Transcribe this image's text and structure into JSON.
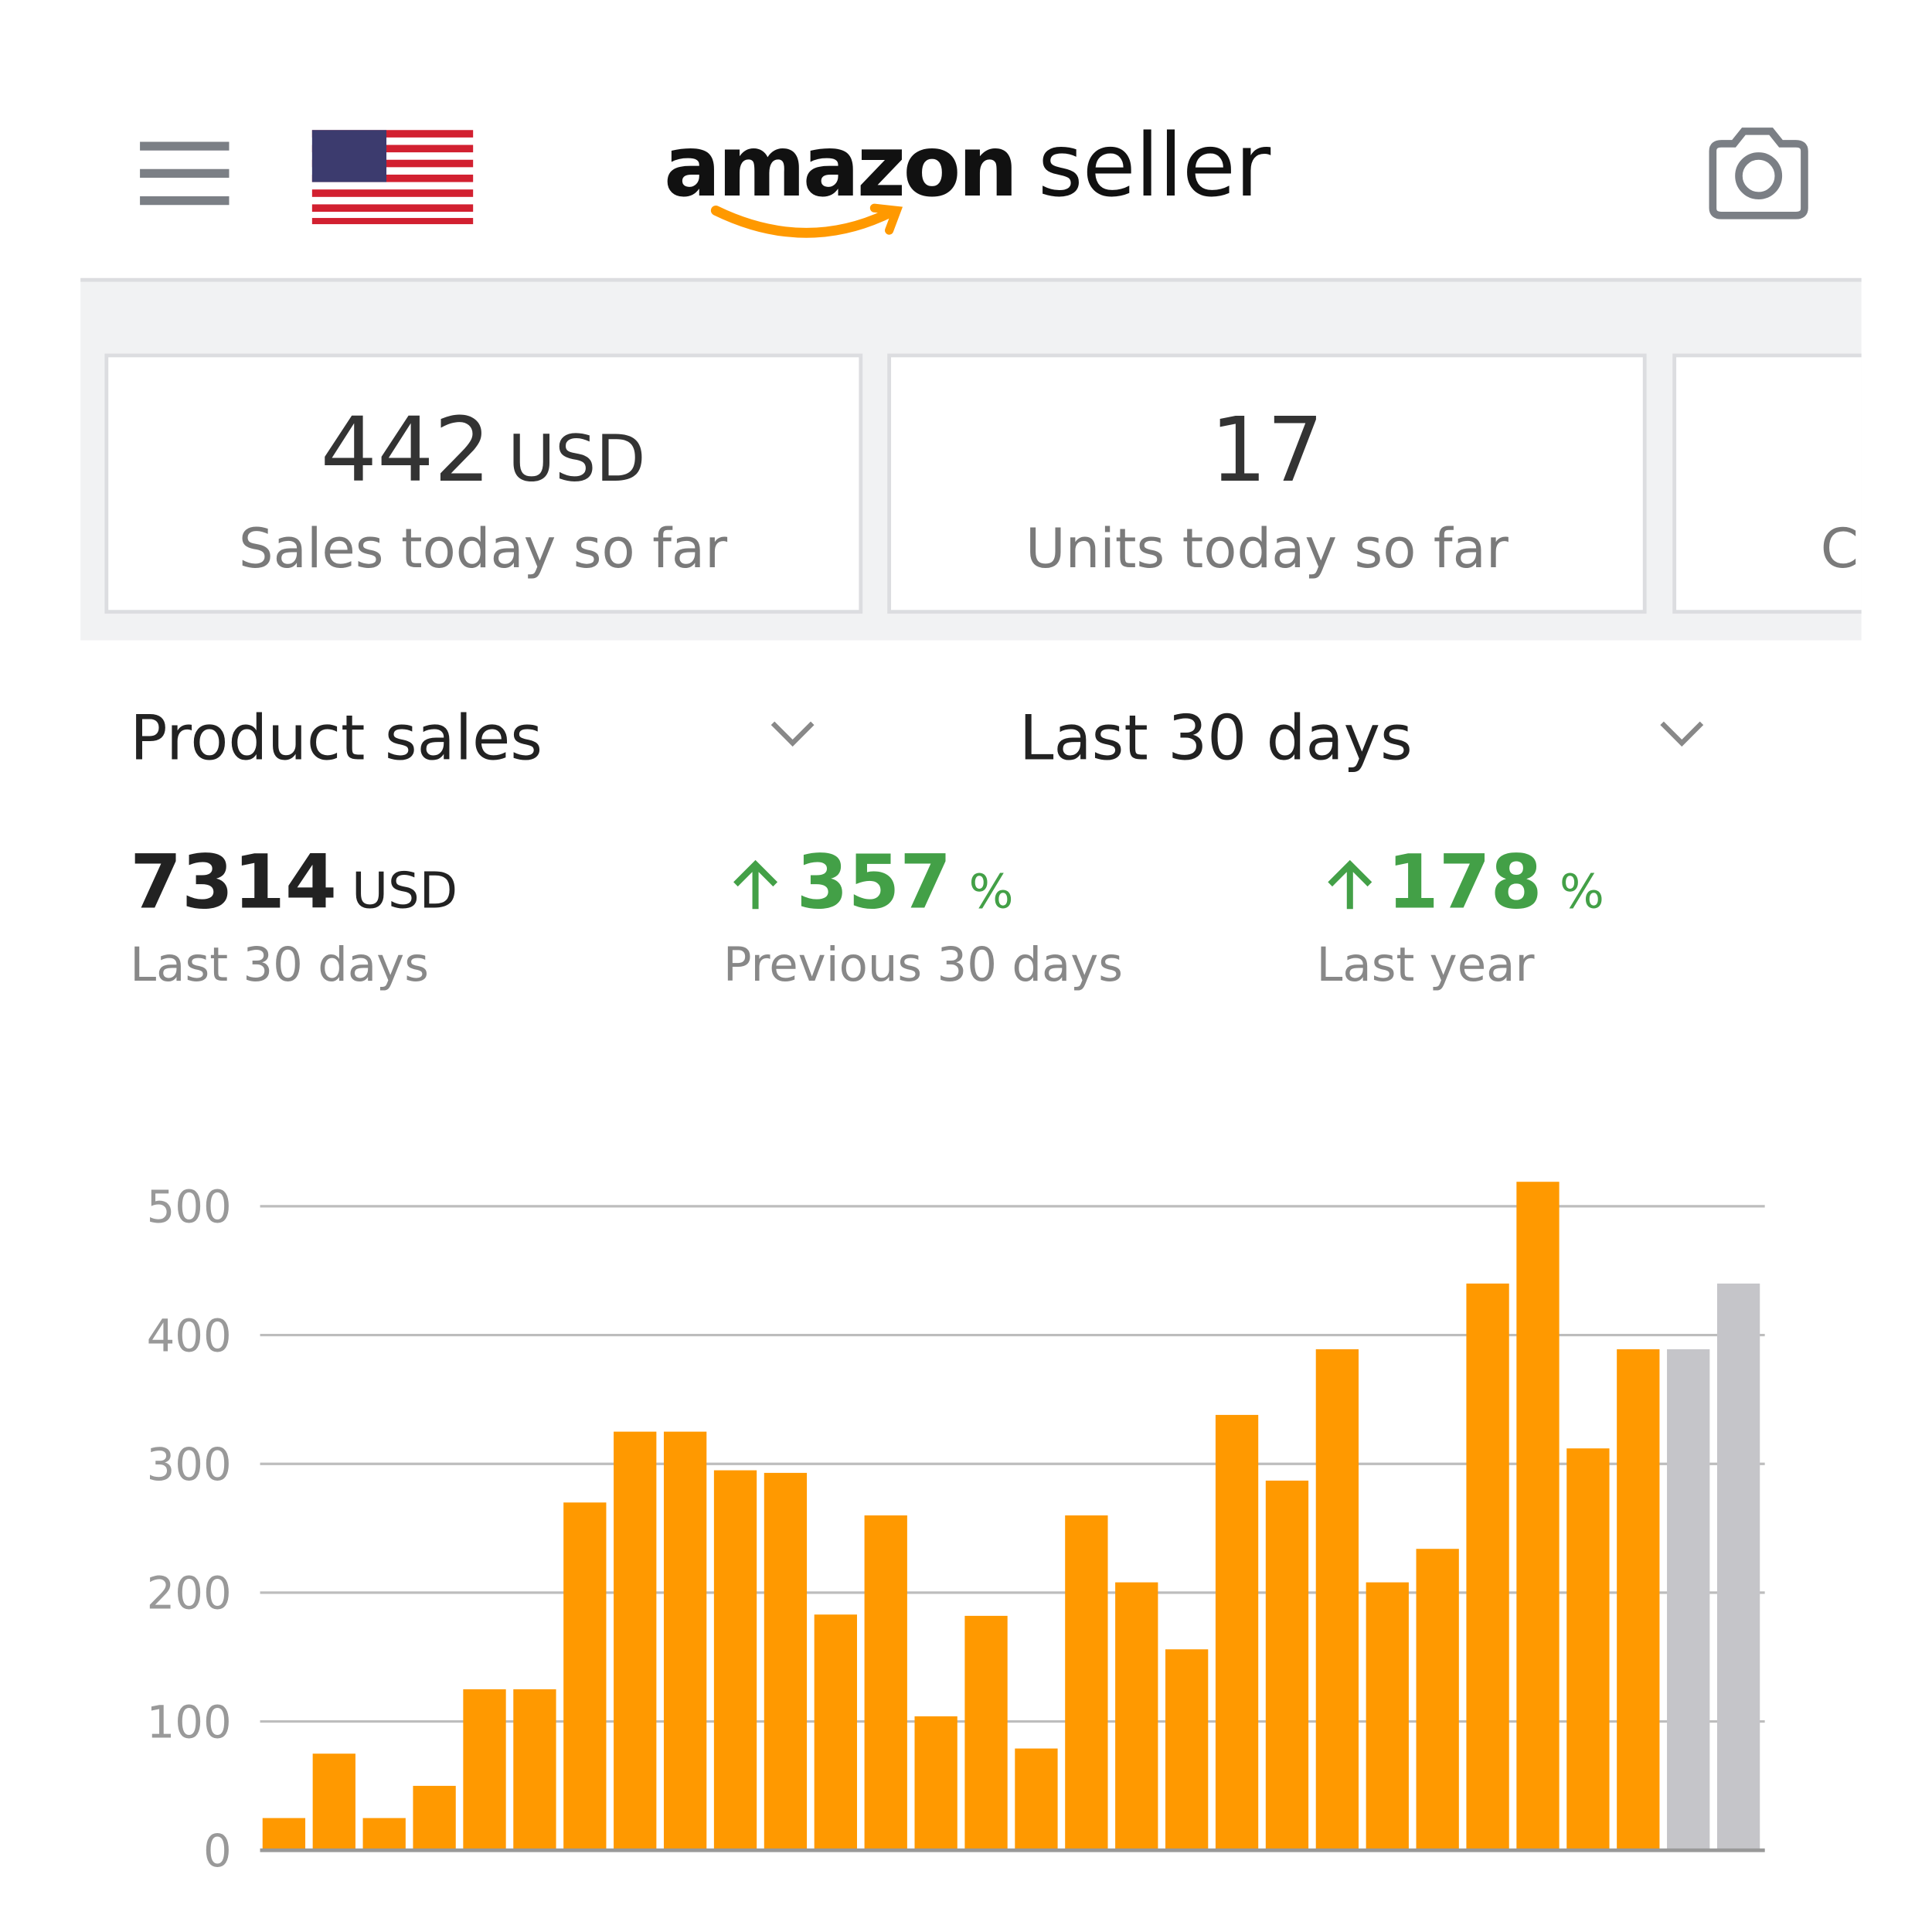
{
  "header": {
    "logo_brand": "amazon",
    "logo_suffix": "seller"
  },
  "cards": [
    {
      "value": 442,
      "unit": "USD",
      "label": "Sales today so far"
    },
    {
      "value": 17,
      "label": "Units today so far"
    },
    {
      "label": "C"
    }
  ],
  "selectors": {
    "metric": "Product sales",
    "period": "Last 30 days"
  },
  "stats": [
    {
      "value": 7314,
      "unit": "USD",
      "label": "Last 30 days"
    },
    {
      "value": 357,
      "unit": "%",
      "label": "Previous 30 days"
    },
    {
      "value": 178,
      "unit": "%",
      "label": "Last year"
    }
  ],
  "chart_data": {
    "type": "bar",
    "values": [
      25,
      75,
      25,
      50,
      125,
      125,
      270,
      325,
      325,
      295,
      293,
      183,
      260,
      104,
      182,
      79,
      260,
      208,
      156,
      338,
      287,
      389,
      208,
      234,
      440,
      519,
      312,
      389,
      389,
      440
    ],
    "colors": [
      "#ff9900",
      "#ff9900",
      "#ff9900",
      "#ff9900",
      "#ff9900",
      "#ff9900",
      "#ff9900",
      "#ff9900",
      "#ff9900",
      "#ff9900",
      "#ff9900",
      "#ff9900",
      "#ff9900",
      "#ff9900",
      "#ff9900",
      "#ff9900",
      "#ff9900",
      "#ff9900",
      "#ff9900",
      "#ff9900",
      "#ff9900",
      "#ff9900",
      "#ff9900",
      "#ff9900",
      "#ff9900",
      "#ff9900",
      "#ff9900",
      "#ff9900",
      "#c5c5c9",
      "#c5c5c9"
    ],
    "ylim": [
      0,
      500
    ],
    "yticks": [
      0,
      100,
      200,
      300,
      400,
      500
    ],
    "grid": true
  }
}
